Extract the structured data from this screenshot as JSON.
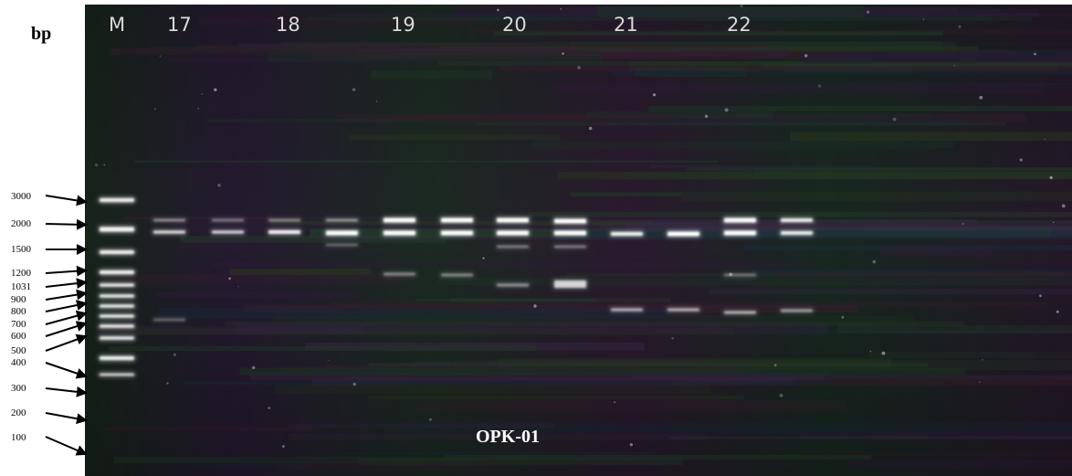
{
  "axis": {
    "unit": "bp"
  },
  "ladder_labels": [
    "3000",
    "2000",
    "1500",
    "1200",
    "1031",
    "900",
    "800",
    "700",
    "600",
    "500",
    "400",
    "300",
    "200",
    "100"
  ],
  "lane_labels": [
    "M",
    "17",
    "18",
    "19",
    "20",
    "21",
    "22"
  ],
  "primer": "OPK-01",
  "colors": {
    "gel_background": "#1a1320",
    "band": "#ffffff",
    "label_text": "#000000",
    "lane_text": "#d9d9d9"
  }
}
